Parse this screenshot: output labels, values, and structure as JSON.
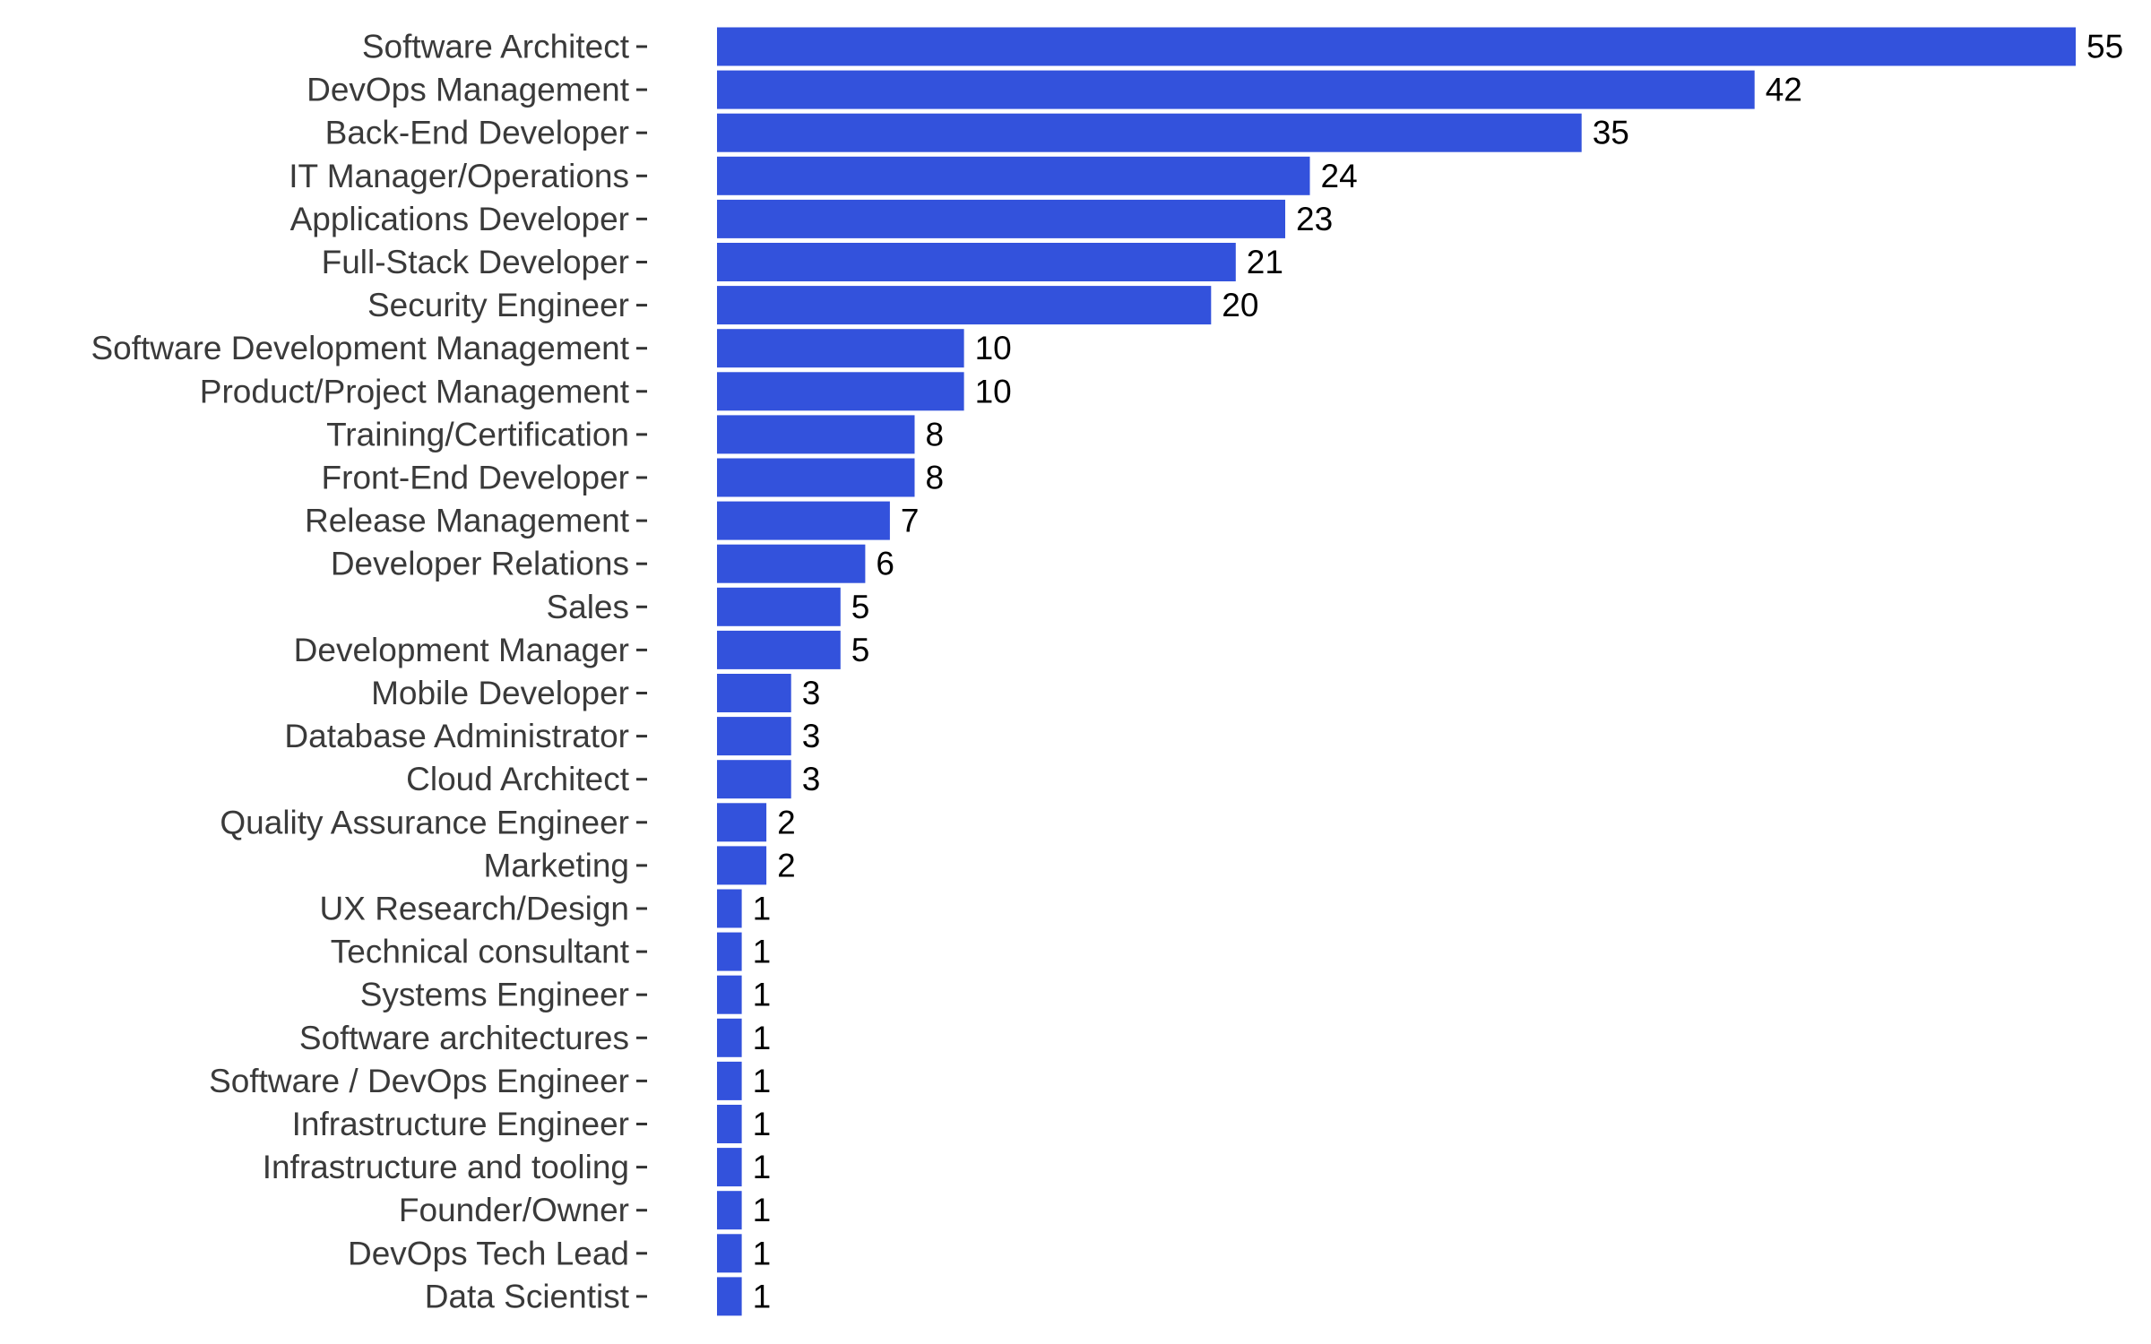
{
  "chart_data": {
    "type": "bar",
    "orientation": "horizontal",
    "categories": [
      "Software Architect",
      "DevOps Management",
      "Back-End Developer",
      "IT Manager/Operations",
      "Applications Developer",
      "Full-Stack Developer",
      "Security Engineer",
      "Software Development Management",
      "Product/Project Management",
      "Training/Certification",
      "Front-End Developer",
      "Release Management",
      "Developer Relations",
      "Sales",
      "Development Manager",
      "Mobile Developer",
      "Database Administrator",
      "Cloud Architect",
      "Quality Assurance Engineer",
      "Marketing",
      "UX Research/Design",
      "Technical consultant",
      "Systems Engineer",
      "Software architectures",
      "Software / DevOps Engineer",
      "Infrastructure Engineer",
      "Infrastructure and tooling",
      "Founder/Owner",
      "DevOps Tech Lead",
      "Data Scientist"
    ],
    "values": [
      55,
      42,
      35,
      24,
      23,
      21,
      20,
      10,
      10,
      8,
      8,
      7,
      6,
      5,
      5,
      3,
      3,
      3,
      2,
      2,
      1,
      1,
      1,
      1,
      1,
      1,
      1,
      1,
      1,
      1
    ],
    "xlim": [
      0,
      55
    ],
    "bar_color": "#3352dc",
    "data_labels": true,
    "grid": false,
    "legend": "none",
    "title": "",
    "xlabel": "",
    "ylabel": ""
  }
}
